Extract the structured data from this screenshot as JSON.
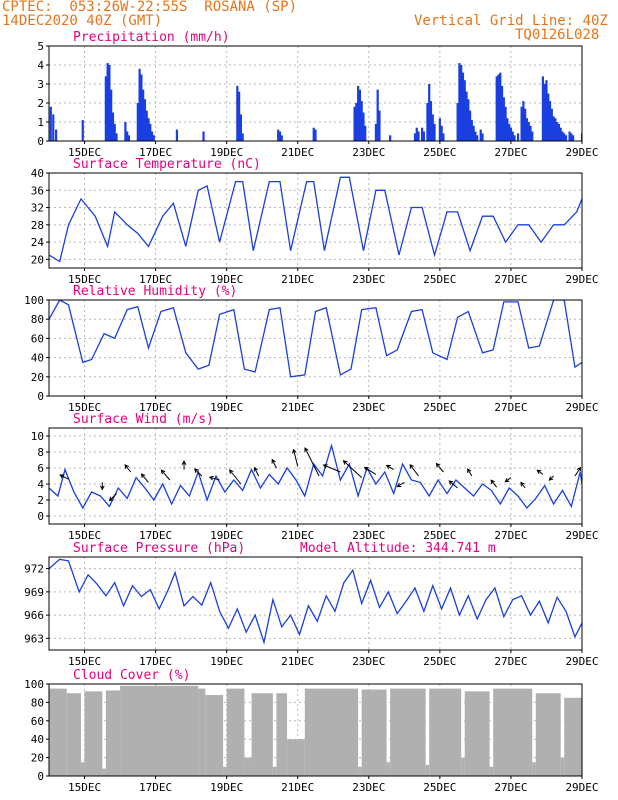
{
  "header": {
    "line1_left": "CPTEC:  053:26W-22:55S  ROSANA (SP)",
    "line2_left": "14DEC2020 40Z (GMT)",
    "line2_right": "Vertical Grid Line: 40Z",
    "line3_right": "TQ0126L028"
  },
  "colors": {
    "header": "#e8741a",
    "title": "#e6007e",
    "series": "#1a3fe0",
    "cloud": "#b0b0b0",
    "grid": "#b8b8b8"
  },
  "chart_data": [
    {
      "type": "bar",
      "title": "Precipitation (mm/h)",
      "xticks": [
        "15DEC",
        "17DEC",
        "19DEC",
        "21DEC",
        "23DEC",
        "25DEC",
        "27DEC",
        "29DEC"
      ],
      "ylim": [
        0,
        5
      ],
      "yticks": [
        0,
        1,
        2,
        3,
        4,
        5
      ],
      "grid": true,
      "x_days": [
        14.05,
        14.12,
        14.2,
        14.95,
        15.6,
        15.65,
        15.7,
        15.75,
        15.8,
        15.85,
        15.9,
        16.15,
        16.2,
        16.25,
        16.5,
        16.55,
        16.6,
        16.65,
        16.7,
        16.75,
        16.8,
        16.85,
        16.9,
        16.95,
        17.6,
        18.35,
        19.3,
        19.35,
        19.4,
        19.45,
        20.45,
        20.5,
        20.55,
        21.45,
        21.5,
        22.6,
        22.65,
        22.7,
        22.75,
        22.8,
        22.85,
        22.9,
        23.2,
        23.25,
        23.3,
        23.6,
        24.3,
        24.35,
        24.4,
        24.5,
        24.55,
        24.65,
        24.7,
        24.75,
        24.8,
        24.85,
        25.0,
        25.05,
        25.1,
        25.5,
        25.55,
        25.6,
        25.65,
        25.7,
        25.75,
        25.8,
        25.85,
        25.9,
        25.95,
        26.0,
        26.05,
        26.15,
        26.2,
        26.6,
        26.65,
        26.7,
        26.75,
        26.8,
        26.85,
        26.9,
        26.95,
        27.0,
        27.05,
        27.1,
        27.2,
        27.3,
        27.35,
        27.4,
        27.45,
        27.5,
        27.55,
        27.6,
        27.9,
        27.95,
        28.0,
        28.05,
        28.1,
        28.15,
        28.2,
        28.25,
        28.3,
        28.35,
        28.4,
        28.45,
        28.5,
        28.55,
        28.65,
        28.7,
        28.75,
        29.0
      ],
      "values": [
        1.8,
        1.4,
        0.6,
        1.1,
        3.4,
        4.1,
        4.0,
        2.7,
        1.5,
        0.9,
        0.4,
        1.0,
        0.5,
        0.3,
        2.0,
        3.8,
        3.5,
        2.7,
        2.2,
        1.6,
        1.2,
        0.9,
        0.5,
        0.3,
        0.6,
        0.5,
        2.9,
        2.6,
        1.4,
        0.4,
        0.6,
        0.5,
        0.3,
        0.7,
        0.6,
        1.8,
        2.0,
        2.9,
        2.7,
        2.1,
        1.5,
        0.8,
        0.9,
        2.7,
        1.6,
        0.3,
        0.4,
        0.7,
        0.5,
        0.7,
        0.5,
        2.0,
        3.0,
        2.1,
        1.4,
        0.9,
        1.2,
        0.8,
        0.4,
        2.0,
        4.1,
        4.0,
        3.6,
        3.2,
        2.6,
        2.2,
        1.6,
        1.1,
        0.8,
        0.5,
        0.3,
        0.6,
        0.4,
        3.4,
        3.5,
        3.6,
        2.9,
        2.3,
        1.8,
        1.2,
        0.9,
        0.7,
        0.5,
        0.3,
        0.4,
        1.8,
        2.1,
        1.7,
        1.2,
        1.0,
        0.8,
        0.5,
        3.4,
        3.0,
        3.2,
        2.5,
        2.1,
        1.7,
        1.3,
        1.2,
        1.0,
        0.9,
        0.7,
        0.5,
        0.4,
        0.3,
        0.5,
        0.4,
        0.3,
        0.4
      ]
    },
    {
      "type": "line",
      "title": "Surface Temperature (nC)",
      "xticks": [
        "15DEC",
        "17DEC",
        "19DEC",
        "21DEC",
        "23DEC",
        "25DEC",
        "27DEC",
        "29DEC"
      ],
      "ylim": [
        18,
        40
      ],
      "yticks": [
        20,
        24,
        28,
        32,
        36,
        40
      ],
      "grid": true,
      "x": [
        14.0,
        14.3,
        14.55,
        14.9,
        15.3,
        15.65,
        15.85,
        16.2,
        16.5,
        16.8,
        17.2,
        17.5,
        17.85,
        18.2,
        18.45,
        18.8,
        19.25,
        19.45,
        19.75,
        20.2,
        20.5,
        20.8,
        21.25,
        21.45,
        21.75,
        22.2,
        22.45,
        22.85,
        23.2,
        23.45,
        23.85,
        24.2,
        24.5,
        24.85,
        25.2,
        25.5,
        25.85,
        26.2,
        26.5,
        26.85,
        27.2,
        27.5,
        27.85,
        28.2,
        28.5,
        28.85,
        29.0
      ],
      "y": [
        21,
        19.5,
        28,
        34,
        30,
        23,
        31,
        28,
        26,
        23,
        30,
        33,
        23,
        36,
        37,
        24,
        38,
        38,
        22,
        38,
        38,
        22,
        38,
        38,
        22,
        39,
        39,
        22,
        36,
        36,
        21,
        32,
        32,
        21,
        31,
        31,
        22,
        30,
        30,
        24,
        28,
        28,
        24,
        28,
        28,
        31,
        34
      ]
    },
    {
      "type": "line",
      "title": "Relative Humidity (%)",
      "xticks": [
        "15DEC",
        "17DEC",
        "19DEC",
        "21DEC",
        "23DEC",
        "25DEC",
        "27DEC",
        "29DEC"
      ],
      "ylim": [
        0,
        100
      ],
      "yticks": [
        0,
        20,
        40,
        60,
        80,
        100
      ],
      "grid": true,
      "x": [
        14.0,
        14.3,
        14.55,
        14.95,
        15.2,
        15.55,
        15.85,
        16.2,
        16.5,
        16.8,
        17.15,
        17.5,
        17.85,
        18.2,
        18.5,
        18.8,
        19.2,
        19.5,
        19.8,
        20.2,
        20.5,
        20.8,
        21.2,
        21.5,
        21.8,
        22.2,
        22.5,
        22.8,
        23.2,
        23.5,
        23.8,
        24.2,
        24.5,
        24.8,
        25.2,
        25.5,
        25.8,
        26.2,
        26.5,
        26.8,
        27.2,
        27.5,
        27.8,
        28.2,
        28.5,
        28.8,
        29.0
      ],
      "y": [
        80,
        100,
        95,
        35,
        38,
        65,
        60,
        90,
        93,
        50,
        88,
        92,
        45,
        28,
        32,
        85,
        90,
        28,
        25,
        90,
        92,
        20,
        22,
        88,
        92,
        22,
        28,
        90,
        92,
        42,
        48,
        88,
        90,
        45,
        38,
        82,
        88,
        45,
        48,
        98,
        98,
        50,
        52,
        100,
        100,
        30,
        35
      ]
    },
    {
      "type": "line",
      "title": "Surface Wind (m/s)",
      "xticks": [
        "15DEC",
        "17DEC",
        "19DEC",
        "21DEC",
        "23DEC",
        "25DEC",
        "27DEC",
        "29DEC"
      ],
      "ylim": [
        -1,
        11
      ],
      "yticks": [
        0,
        2,
        4,
        6,
        8,
        10
      ],
      "grid": true,
      "x": [
        14.0,
        14.25,
        14.45,
        14.7,
        14.95,
        15.2,
        15.45,
        15.7,
        15.95,
        16.2,
        16.45,
        16.7,
        16.95,
        17.2,
        17.45,
        17.7,
        17.95,
        18.2,
        18.45,
        18.7,
        18.95,
        19.2,
        19.45,
        19.7,
        19.95,
        20.2,
        20.45,
        20.7,
        20.95,
        21.2,
        21.45,
        21.7,
        21.95,
        22.2,
        22.45,
        22.7,
        22.95,
        23.2,
        23.45,
        23.7,
        23.95,
        24.2,
        24.45,
        24.7,
        24.95,
        25.2,
        25.45,
        25.7,
        25.95,
        26.2,
        26.45,
        26.7,
        26.95,
        27.2,
        27.45,
        27.7,
        27.95,
        28.2,
        28.45,
        28.7,
        28.95,
        29.0
      ],
      "y": [
        3.5,
        2.5,
        5.8,
        3.0,
        1.0,
        3.0,
        2.5,
        1.2,
        3.5,
        2.2,
        4.8,
        3.5,
        2.0,
        4.0,
        1.5,
        3.8,
        2.5,
        5.5,
        2.0,
        5.0,
        3.0,
        4.5,
        3.2,
        5.8,
        3.5,
        5.2,
        4.0,
        6.0,
        4.5,
        2.5,
        6.5,
        5.0,
        8.8,
        4.5,
        6.5,
        2.5,
        6.0,
        4.0,
        5.5,
        2.8,
        6.5,
        4.5,
        4.2,
        2.5,
        4.5,
        2.8,
        4.5,
        3.5,
        2.5,
        4.0,
        3.2,
        1.5,
        3.5,
        2.5,
        1.0,
        2.2,
        3.8,
        1.5,
        3.2,
        1.2,
        5.5,
        4.0
      ],
      "arrows": [
        {
          "x": 14.55,
          "y": 4.6,
          "u": -0.6,
          "v": 0.3
        },
        {
          "x": 15.5,
          "y": 4.2,
          "u": 0.0,
          "v": -0.5
        },
        {
          "x": 15.9,
          "y": 2.8,
          "u": -0.5,
          "v": -0.5
        },
        {
          "x": 16.3,
          "y": 5.5,
          "u": -0.4,
          "v": 0.5
        },
        {
          "x": 16.8,
          "y": 4.2,
          "u": -0.5,
          "v": 0.6
        },
        {
          "x": 17.4,
          "y": 4.5,
          "u": -0.6,
          "v": 0.7
        },
        {
          "x": 17.8,
          "y": 5.8,
          "u": 0.0,
          "v": 0.6
        },
        {
          "x": 18.3,
          "y": 5.0,
          "u": -0.5,
          "v": 0.5
        },
        {
          "x": 18.8,
          "y": 4.5,
          "u": -0.7,
          "v": 0.2
        },
        {
          "x": 19.4,
          "y": 4.0,
          "u": -0.8,
          "v": 1.0
        },
        {
          "x": 19.9,
          "y": 5.0,
          "u": -0.3,
          "v": 0.6
        },
        {
          "x": 20.4,
          "y": 6.0,
          "u": -0.3,
          "v": 0.6
        },
        {
          "x": 21.0,
          "y": 6.2,
          "u": -0.3,
          "v": 1.2
        },
        {
          "x": 21.6,
          "y": 5.0,
          "u": -1.0,
          "v": 2.0
        },
        {
          "x": 22.2,
          "y": 5.5,
          "u": -1.2,
          "v": 0.5
        },
        {
          "x": 22.8,
          "y": 4.8,
          "u": -1.3,
          "v": 1.2
        },
        {
          "x": 23.2,
          "y": 5.2,
          "u": -0.8,
          "v": 0.5
        },
        {
          "x": 23.7,
          "y": 5.8,
          "u": -0.5,
          "v": 0.3
        },
        {
          "x": 24.0,
          "y": 4.2,
          "u": -0.5,
          "v": -0.3
        },
        {
          "x": 24.4,
          "y": 5.0,
          "u": -0.6,
          "v": 0.8
        },
        {
          "x": 25.1,
          "y": 5.5,
          "u": -0.5,
          "v": 0.6
        },
        {
          "x": 25.5,
          "y": 3.5,
          "u": -0.6,
          "v": 0.5
        },
        {
          "x": 25.9,
          "y": 5.0,
          "u": -0.3,
          "v": 0.5
        },
        {
          "x": 26.6,
          "y": 3.6,
          "u": -0.4,
          "v": 0.5
        },
        {
          "x": 27.0,
          "y": 4.8,
          "u": -0.4,
          "v": -0.3
        },
        {
          "x": 27.4,
          "y": 3.5,
          "u": -0.3,
          "v": 0.4
        },
        {
          "x": 27.9,
          "y": 5.2,
          "u": -0.4,
          "v": 0.3
        },
        {
          "x": 28.2,
          "y": 5.0,
          "u": -0.3,
          "v": -0.3
        },
        {
          "x": 28.8,
          "y": 5.0,
          "u": 0.4,
          "v": 0.6
        }
      ]
    },
    {
      "type": "line",
      "title": "Surface Pressure (hPa)",
      "annotation": "Model Altitude: 344.741 m",
      "xticks": [
        "15DEC",
        "17DEC",
        "19DEC",
        "21DEC",
        "23DEC",
        "25DEC",
        "27DEC",
        "29DEC"
      ],
      "ylim": [
        961.5,
        973.5
      ],
      "yticks": [
        963,
        966,
        969,
        972
      ],
      "grid": true,
      "x": [
        14.0,
        14.3,
        14.55,
        14.85,
        15.1,
        15.35,
        15.6,
        15.85,
        16.1,
        16.35,
        16.6,
        16.85,
        17.1,
        17.35,
        17.55,
        17.8,
        18.05,
        18.3,
        18.55,
        18.8,
        19.05,
        19.3,
        19.55,
        19.8,
        20.05,
        20.3,
        20.55,
        20.8,
        21.05,
        21.3,
        21.55,
        21.8,
        22.05,
        22.3,
        22.55,
        22.8,
        23.05,
        23.3,
        23.55,
        23.8,
        24.05,
        24.3,
        24.55,
        24.8,
        25.05,
        25.3,
        25.55,
        25.8,
        26.05,
        26.3,
        26.55,
        26.8,
        27.05,
        27.3,
        27.55,
        27.8,
        28.05,
        28.3,
        28.55,
        28.8,
        29.0
      ],
      "y": [
        972.0,
        973.2,
        973.0,
        969.0,
        971.2,
        970.0,
        968.5,
        970.2,
        967.2,
        969.8,
        968.4,
        969.3,
        966.8,
        969.2,
        971.5,
        967.2,
        968.4,
        967.3,
        970.2,
        966.5,
        964.3,
        966.8,
        963.8,
        966.0,
        962.5,
        968.0,
        964.5,
        966.0,
        963.5,
        967.2,
        965.2,
        968.5,
        966.5,
        970.2,
        971.8,
        967.5,
        970.5,
        967.0,
        969.0,
        966.2,
        967.8,
        969.5,
        966.5,
        969.8,
        966.8,
        969.5,
        966.0,
        968.5,
        965.5,
        968.0,
        969.5,
        965.8,
        968.0,
        968.5,
        966.0,
        967.8,
        965.0,
        968.3,
        966.5,
        963.2,
        965.0
      ]
    },
    {
      "type": "bar",
      "title": "Cloud Cover (%)",
      "xticks": [
        "15DEC",
        "17DEC",
        "19DEC",
        "21DEC",
        "23DEC",
        "25DEC",
        "27DEC",
        "29DEC"
      ],
      "ylim": [
        0,
        100
      ],
      "yticks": [
        0,
        20,
        40,
        60,
        80,
        100
      ],
      "grid": true,
      "segments": [
        {
          "from": 14.0,
          "to": 14.5,
          "value": 95
        },
        {
          "from": 14.5,
          "to": 14.9,
          "value": 90
        },
        {
          "from": 14.9,
          "to": 15.0,
          "value": 15
        },
        {
          "from": 15.0,
          "to": 15.5,
          "value": 92
        },
        {
          "from": 15.5,
          "to": 15.6,
          "value": 8
        },
        {
          "from": 15.6,
          "to": 16.0,
          "value": 93
        },
        {
          "from": 16.0,
          "to": 18.2,
          "value": 98
        },
        {
          "from": 18.2,
          "to": 18.4,
          "value": 95
        },
        {
          "from": 18.4,
          "to": 18.9,
          "value": 88
        },
        {
          "from": 18.9,
          "to": 19.0,
          "value": 10
        },
        {
          "from": 19.0,
          "to": 19.5,
          "value": 95
        },
        {
          "from": 19.5,
          "to": 19.7,
          "value": 20
        },
        {
          "from": 19.7,
          "to": 20.3,
          "value": 90
        },
        {
          "from": 20.3,
          "to": 20.4,
          "value": 10
        },
        {
          "from": 20.4,
          "to": 20.7,
          "value": 90
        },
        {
          "from": 20.7,
          "to": 21.2,
          "value": 40
        },
        {
          "from": 21.2,
          "to": 22.7,
          "value": 95
        },
        {
          "from": 22.7,
          "to": 22.8,
          "value": 10
        },
        {
          "from": 22.8,
          "to": 23.5,
          "value": 94
        },
        {
          "from": 23.5,
          "to": 23.6,
          "value": 15
        },
        {
          "from": 23.6,
          "to": 24.6,
          "value": 95
        },
        {
          "from": 24.6,
          "to": 24.7,
          "value": 12
        },
        {
          "from": 24.7,
          "to": 25.6,
          "value": 95
        },
        {
          "from": 25.6,
          "to": 25.7,
          "value": 20
        },
        {
          "from": 25.7,
          "to": 26.4,
          "value": 92
        },
        {
          "from": 26.4,
          "to": 26.5,
          "value": 10
        },
        {
          "from": 26.5,
          "to": 27.6,
          "value": 95
        },
        {
          "from": 27.6,
          "to": 27.7,
          "value": 15
        },
        {
          "from": 27.7,
          "to": 28.4,
          "value": 90
        },
        {
          "from": 28.4,
          "to": 28.5,
          "value": 20
        },
        {
          "from": 28.5,
          "to": 29.0,
          "value": 85
        }
      ]
    }
  ]
}
